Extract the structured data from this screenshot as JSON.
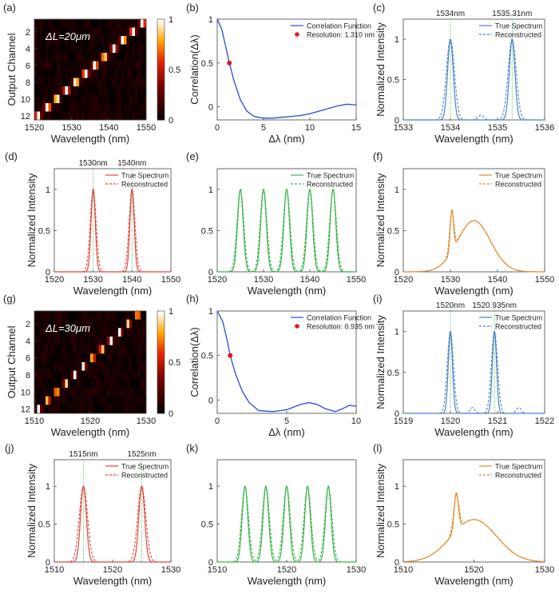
{
  "figure": {
    "panel_letters": [
      "(a)",
      "(b)",
      "(c)",
      "(d)",
      "(e)",
      "(f)",
      "(g)",
      "(h)",
      "(i)",
      "(j)",
      "(k)",
      "(l)"
    ]
  },
  "colors": {
    "blue": "#2a4bd7",
    "red_point": "#e0191c",
    "spec_blue": "#4a82c9",
    "spec_red": "#e0473d",
    "spec_green": "#3bb44a",
    "spec_orange": "#e08a2a",
    "vline_green": "#3fbf3f"
  },
  "chart_data": [
    {
      "id": "a",
      "type": "heatmap",
      "annotation": "ΔL=20μm",
      "xlabel": "Wavelength (nm)",
      "ylabel": "Output Channel",
      "xlim": [
        1520,
        1550
      ],
      "xticks": [
        1520,
        1530,
        1540,
        1550
      ],
      "rows": 12,
      "yticks": [
        2,
        4,
        6,
        8,
        10,
        12
      ],
      "diagonal": {
        "start": 1521,
        "end": 1549,
        "sigma": 0.45,
        "peak": 1.0,
        "noise": 0.12
      },
      "colorbar": {
        "ticks": [
          0,
          0.5,
          1
        ],
        "tick_labels": [
          "0",
          "0.5",
          "1"
        ]
      }
    },
    {
      "id": "b",
      "type": "line",
      "xlabel": "Δλ (nm)",
      "ylabel": "Correlation(Δλ)",
      "xlim": [
        0,
        15
      ],
      "ylim": [
        -0.15,
        1.0
      ],
      "xticks": [
        0,
        5,
        10,
        15
      ],
      "yticks": [
        0,
        0.5,
        1
      ],
      "series": [
        {
          "name": "Correlation Function",
          "x": [
            0,
            0.5,
            1.0,
            1.31,
            1.8,
            2.5,
            3.2,
            4.0,
            5.0,
            6.0,
            7.0,
            8.0,
            9.0,
            10.0,
            11.0,
            12.0,
            13.0,
            14.0,
            15.0
          ],
          "y": [
            1.0,
            0.88,
            0.65,
            0.5,
            0.3,
            0.08,
            -0.05,
            -0.11,
            -0.13,
            -0.13,
            -0.12,
            -0.11,
            -0.1,
            -0.08,
            -0.05,
            -0.02,
            0.01,
            0.03,
            0.02
          ]
        }
      ],
      "point": {
        "name": "Resolution: 1.310 nm",
        "x": 1.31,
        "y": 0.5
      },
      "legend_labels": [
        "Correlation Function",
        "Resolution: 1.310 nm"
      ]
    },
    {
      "id": "c",
      "type": "line",
      "xlabel": "Wavelength (nm)",
      "ylabel": "Normalized Intensity",
      "xlim": [
        1533,
        1536
      ],
      "ylim": [
        0,
        1.25
      ],
      "xticks": [
        1533,
        1534,
        1535,
        1536
      ],
      "yticks": [
        0,
        0.5,
        1
      ],
      "true_peaks": [
        {
          "center": 1534.0,
          "sigma": 0.06,
          "amp": 1.0
        },
        {
          "center": 1535.31,
          "sigma": 0.06,
          "amp": 1.0
        }
      ],
      "recon_peaks": [
        {
          "center": 1534.0,
          "sigma": 0.085,
          "amp": 1.0
        },
        {
          "center": 1535.31,
          "sigma": 0.085,
          "amp": 1.0
        },
        {
          "center": 1534.65,
          "sigma": 0.06,
          "amp": 0.06
        }
      ],
      "markers": [
        1534.0,
        1535.31
      ],
      "marker_labels": [
        "1534nm",
        "1535.31nm"
      ],
      "legend_labels": [
        "True Spectrum",
        "Reconstructed"
      ],
      "color_key": "spec_blue"
    },
    {
      "id": "d",
      "type": "line",
      "xlabel": "Wavelength (nm)",
      "ylabel": "Normalized Intensity",
      "xlim": [
        1520,
        1550
      ],
      "ylim": [
        0,
        1.25
      ],
      "xticks": [
        1520,
        1530,
        1540,
        1550
      ],
      "yticks": [
        0,
        0.5,
        1
      ],
      "true_peaks": [
        {
          "center": 1530,
          "sigma": 0.55,
          "amp": 1.0
        },
        {
          "center": 1540,
          "sigma": 0.55,
          "amp": 1.0
        }
      ],
      "recon_peaks": [
        {
          "center": 1530,
          "sigma": 0.75,
          "amp": 1.0
        },
        {
          "center": 1540,
          "sigma": 0.75,
          "amp": 1.0
        }
      ],
      "markers": [
        1530,
        1540
      ],
      "marker_labels": [
        "1530nm",
        "1540nm"
      ],
      "legend_labels": [
        "True Spectrum",
        "Reconstructed"
      ],
      "color_key": "spec_red"
    },
    {
      "id": "e",
      "type": "line",
      "xlabel": "Wavelength (nm)",
      "ylabel": "",
      "xlim": [
        1520,
        1550
      ],
      "ylim": [
        0,
        1.25
      ],
      "xticks": [
        1520,
        1530,
        1540,
        1550
      ],
      "yticks": [
        0,
        0.5,
        1
      ],
      "true_peaks": [
        {
          "center": 1525,
          "sigma": 0.6,
          "amp": 1.0
        },
        {
          "center": 1530,
          "sigma": 0.6,
          "amp": 1.0
        },
        {
          "center": 1535,
          "sigma": 0.6,
          "amp": 1.0
        },
        {
          "center": 1540,
          "sigma": 0.6,
          "amp": 1.0
        },
        {
          "center": 1545,
          "sigma": 0.6,
          "amp": 1.0
        }
      ],
      "recon_peaks": [
        {
          "center": 1525,
          "sigma": 0.72,
          "amp": 1.0
        },
        {
          "center": 1530,
          "sigma": 0.72,
          "amp": 1.0
        },
        {
          "center": 1535,
          "sigma": 0.72,
          "amp": 1.0
        },
        {
          "center": 1540,
          "sigma": 0.72,
          "amp": 1.0
        },
        {
          "center": 1545,
          "sigma": 0.72,
          "amp": 1.0
        }
      ],
      "markers": [],
      "marker_labels": [],
      "legend_labels": [
        "True Spectrum",
        "Reconstructed"
      ],
      "color_key": "spec_green"
    },
    {
      "id": "f",
      "type": "line",
      "xlabel": "Wavelength (nm)",
      "ylabel": "Normalized Intensity",
      "xlim": [
        1520,
        1550
      ],
      "ylim": [
        0,
        1.25
      ],
      "xticks": [
        1520,
        1530,
        1540,
        1550
      ],
      "yticks": [
        0,
        0.5,
        1
      ],
      "true_peaks": [
        {
          "center": 1530.3,
          "sigma": 0.35,
          "amp": 0.5
        },
        {
          "center": 1535,
          "sigma": 3.5,
          "amp": 0.62
        }
      ],
      "recon_peaks": [
        {
          "center": 1530.3,
          "sigma": 0.45,
          "amp": 0.48
        },
        {
          "center": 1535,
          "sigma": 3.5,
          "amp": 0.62
        }
      ],
      "markers": [],
      "marker_labels": [],
      "legend_labels": [
        "True Spectrum",
        "Reconstructed"
      ],
      "color_key": "spec_orange"
    },
    {
      "id": "g",
      "type": "heatmap",
      "annotation": "ΔL=30μm",
      "xlabel": "Wavelength (nm)",
      "ylabel": "Output Channel",
      "xlim": [
        1510,
        1530
      ],
      "xticks": [
        1510,
        1520,
        1530
      ],
      "rows": 12,
      "yticks": [
        2,
        4,
        6,
        8,
        10,
        12
      ],
      "diagonal": {
        "start": 1510.8,
        "end": 1528.5,
        "sigma": 0.32,
        "peak": 1.0,
        "noise": 0.12
      },
      "colorbar": {
        "ticks": [
          0,
          0.5,
          1
        ],
        "tick_labels": [
          "0",
          "0.5",
          "1"
        ]
      }
    },
    {
      "id": "h",
      "type": "line",
      "xlabel": "Δλ (nm)",
      "ylabel": "Correlation(Δλ)",
      "xlim": [
        0,
        10
      ],
      "ylim": [
        -0.15,
        1.0
      ],
      "xticks": [
        0,
        5,
        10
      ],
      "yticks": [
        0,
        0.5,
        1
      ],
      "series": [
        {
          "name": "Correlation Function",
          "x": [
            0,
            0.4,
            0.7,
            0.935,
            1.3,
            1.8,
            2.3,
            3.0,
            4.0,
            5.0,
            6.0,
            6.6,
            7.2,
            7.8,
            8.5,
            9.0,
            9.5,
            10.0
          ],
          "y": [
            1.0,
            0.88,
            0.68,
            0.5,
            0.3,
            0.1,
            -0.03,
            -0.12,
            -0.13,
            -0.11,
            -0.05,
            -0.03,
            -0.05,
            -0.1,
            -0.13,
            -0.1,
            -0.06,
            -0.07
          ]
        }
      ],
      "point": {
        "name": "Resolution: 0.935 nm",
        "x": 0.935,
        "y": 0.5
      },
      "legend_labels": [
        "Correlation Function",
        "Resolution: 0.935 nm"
      ]
    },
    {
      "id": "i",
      "type": "line",
      "xlabel": "Wavelength (nm)",
      "ylabel": "Normalized Intensity",
      "xlim": [
        1519,
        1522
      ],
      "ylim": [
        0,
        1.25
      ],
      "xticks": [
        1519,
        1520,
        1521,
        1522
      ],
      "yticks": [
        0,
        0.5,
        1
      ],
      "true_peaks": [
        {
          "center": 1520.0,
          "sigma": 0.045,
          "amp": 1.0
        },
        {
          "center": 1520.935,
          "sigma": 0.045,
          "amp": 1.0
        }
      ],
      "recon_peaks": [
        {
          "center": 1520.0,
          "sigma": 0.065,
          "amp": 1.0
        },
        {
          "center": 1520.935,
          "sigma": 0.065,
          "amp": 1.0
        },
        {
          "center": 1520.47,
          "sigma": 0.05,
          "amp": 0.07
        },
        {
          "center": 1521.45,
          "sigma": 0.05,
          "amp": 0.07
        }
      ],
      "markers": [
        1520.0,
        1520.935
      ],
      "marker_labels": [
        "1520nm",
        "1520.935nm"
      ],
      "legend_labels": [
        "True Spectrum",
        "Reconstructed"
      ],
      "color_key": "spec_blue"
    },
    {
      "id": "j",
      "type": "line",
      "xlabel": "Wavelength (nm)",
      "ylabel": "Normalized Intensity",
      "xlim": [
        1510,
        1530
      ],
      "ylim": [
        0,
        1.35
      ],
      "xticks": [
        1510,
        1520,
        1530
      ],
      "yticks": [
        0,
        0.5,
        1
      ],
      "true_peaks": [
        {
          "center": 1515,
          "sigma": 0.5,
          "amp": 1.0
        },
        {
          "center": 1525,
          "sigma": 0.5,
          "amp": 1.0
        }
      ],
      "recon_peaks": [
        {
          "center": 1515,
          "sigma": 0.7,
          "amp": 1.0
        },
        {
          "center": 1525,
          "sigma": 0.7,
          "amp": 1.0
        }
      ],
      "markers": [
        1515,
        1525
      ],
      "marker_labels": [
        "1515nm",
        "1525nm"
      ],
      "legend_labels": [
        "True Spectrum",
        "Reconstructed"
      ],
      "color_key": "spec_red"
    },
    {
      "id": "k",
      "type": "line",
      "xlabel": "Wavelength (nm)",
      "ylabel": "",
      "xlim": [
        1510,
        1530
      ],
      "ylim": [
        0,
        1.35
      ],
      "xticks": [
        1510,
        1520,
        1530
      ],
      "yticks": [
        0,
        0.5,
        1
      ],
      "true_peaks": [
        {
          "center": 1514,
          "sigma": 0.4,
          "amp": 1.0
        },
        {
          "center": 1517,
          "sigma": 0.4,
          "amp": 1.0
        },
        {
          "center": 1520,
          "sigma": 0.4,
          "amp": 1.0
        },
        {
          "center": 1523,
          "sigma": 0.4,
          "amp": 1.0
        },
        {
          "center": 1526,
          "sigma": 0.4,
          "amp": 1.0
        }
      ],
      "recon_peaks": [
        {
          "center": 1514,
          "sigma": 0.5,
          "amp": 1.0
        },
        {
          "center": 1517,
          "sigma": 0.5,
          "amp": 1.0
        },
        {
          "center": 1520,
          "sigma": 0.5,
          "amp": 1.0
        },
        {
          "center": 1523,
          "sigma": 0.5,
          "amp": 1.0
        },
        {
          "center": 1526,
          "sigma": 0.5,
          "amp": 1.0
        }
      ],
      "markers": [],
      "marker_labels": [],
      "legend_labels": [],
      "color_key": "spec_green"
    },
    {
      "id": "l",
      "type": "line",
      "xlabel": "Wavelength (nm)",
      "ylabel": "Normalized Intensity",
      "xlim": [
        1510,
        1530
      ],
      "ylim": [
        0,
        1.35
      ],
      "xticks": [
        1510,
        1520,
        1530
      ],
      "yticks": [
        0,
        0.5,
        1
      ],
      "true_peaks": [
        {
          "center": 1517.5,
          "sigma": 0.3,
          "amp": 0.5
        },
        {
          "center": 1520,
          "sigma": 3.2,
          "amp": 0.56
        }
      ],
      "recon_peaks": [
        {
          "center": 1517.5,
          "sigma": 0.38,
          "amp": 0.47
        },
        {
          "center": 1520,
          "sigma": 3.2,
          "amp": 0.56
        }
      ],
      "markers": [],
      "marker_labels": [],
      "legend_labels": [
        "True Spectrum",
        "Reconstructed"
      ],
      "color_key": "spec_orange"
    }
  ]
}
